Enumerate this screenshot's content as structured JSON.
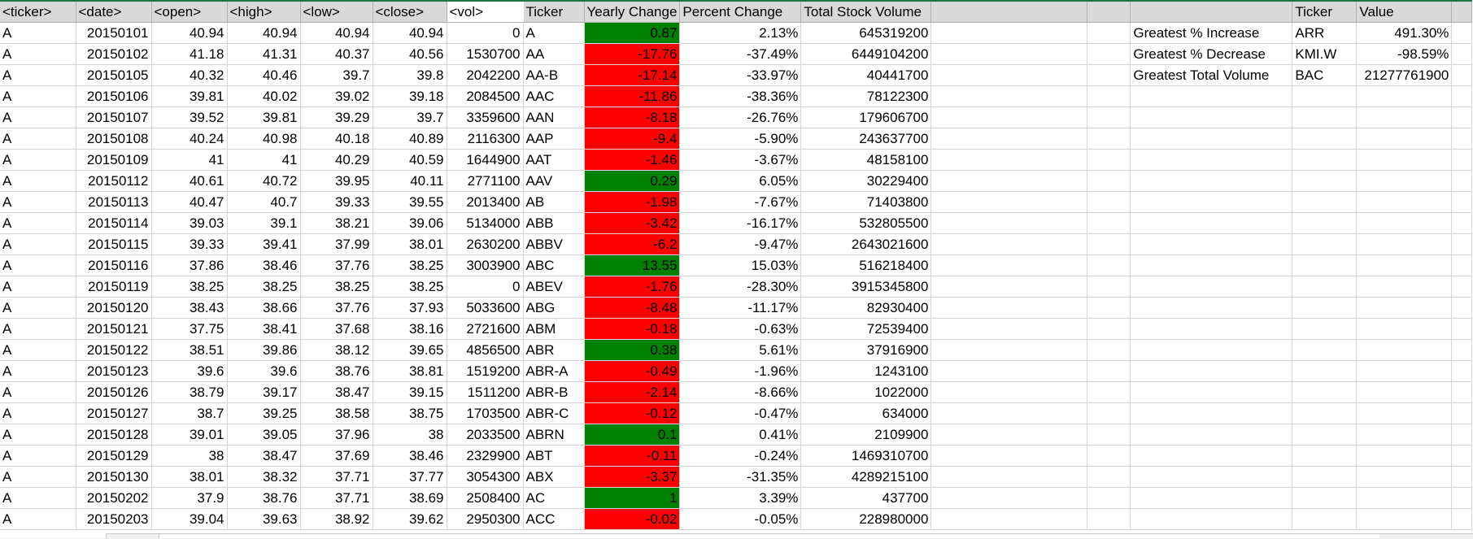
{
  "colors": {
    "positive_fill": "#008000",
    "negative_fill": "#ff0000",
    "header_fill": "#d9d9d9",
    "grid_line": "#d4d4d4",
    "selection_border": "#217346"
  },
  "headers": {
    "raw": [
      "<ticker>",
      "<date>",
      "<open>",
      "<high>",
      "<low>",
      "<close>",
      "<vol>"
    ],
    "summary": [
      "Ticker",
      "Yearly Change",
      "Percent Change",
      "Total Stock Volume"
    ],
    "greatest": [
      "",
      "Ticker",
      "Value"
    ]
  },
  "raw_rows": [
    [
      "A",
      "20150101",
      "40.94",
      "40.94",
      "40.94",
      "40.94",
      "0"
    ],
    [
      "A",
      "20150102",
      "41.18",
      "41.31",
      "40.37",
      "40.56",
      "1530700"
    ],
    [
      "A",
      "20150105",
      "40.32",
      "40.46",
      "39.7",
      "39.8",
      "2042200"
    ],
    [
      "A",
      "20150106",
      "39.81",
      "40.02",
      "39.02",
      "39.18",
      "2084500"
    ],
    [
      "A",
      "20150107",
      "39.52",
      "39.81",
      "39.29",
      "39.7",
      "3359600"
    ],
    [
      "A",
      "20150108",
      "40.24",
      "40.98",
      "40.18",
      "40.89",
      "2116300"
    ],
    [
      "A",
      "20150109",
      "41",
      "41",
      "40.29",
      "40.59",
      "1644900"
    ],
    [
      "A",
      "20150112",
      "40.61",
      "40.72",
      "39.95",
      "40.11",
      "2771100"
    ],
    [
      "A",
      "20150113",
      "40.47",
      "40.7",
      "39.33",
      "39.55",
      "2013400"
    ],
    [
      "A",
      "20150114",
      "39.03",
      "39.1",
      "38.21",
      "39.06",
      "5134000"
    ],
    [
      "A",
      "20150115",
      "39.33",
      "39.41",
      "37.99",
      "38.01",
      "2630200"
    ],
    [
      "A",
      "20150116",
      "37.86",
      "38.46",
      "37.76",
      "38.25",
      "3003900"
    ],
    [
      "A",
      "20150119",
      "38.25",
      "38.25",
      "38.25",
      "38.25",
      "0"
    ],
    [
      "A",
      "20150120",
      "38.43",
      "38.66",
      "37.76",
      "37.93",
      "5033600"
    ],
    [
      "A",
      "20150121",
      "37.75",
      "38.41",
      "37.68",
      "38.16",
      "2721600"
    ],
    [
      "A",
      "20150122",
      "38.51",
      "39.86",
      "38.12",
      "39.65",
      "4856500"
    ],
    [
      "A",
      "20150123",
      "39.6",
      "39.6",
      "38.76",
      "38.81",
      "1519200"
    ],
    [
      "A",
      "20150126",
      "38.79",
      "39.17",
      "38.47",
      "39.15",
      "1511200"
    ],
    [
      "A",
      "20150127",
      "38.7",
      "39.25",
      "38.58",
      "38.75",
      "1703500"
    ],
    [
      "A",
      "20150128",
      "39.01",
      "39.05",
      "37.96",
      "38",
      "2033500"
    ],
    [
      "A",
      "20150129",
      "38",
      "38.47",
      "37.69",
      "38.46",
      "2329900"
    ],
    [
      "A",
      "20150130",
      "38.01",
      "38.32",
      "37.71",
      "37.77",
      "3054300"
    ],
    [
      "A",
      "20150202",
      "37.9",
      "38.76",
      "37.71",
      "38.69",
      "2508400"
    ],
    [
      "A",
      "20150203",
      "39.04",
      "39.63",
      "38.92",
      "39.62",
      "2950300"
    ]
  ],
  "summary_rows": [
    {
      "ticker": "A",
      "change": "0.87",
      "pct": "2.13%",
      "volume": "645319200"
    },
    {
      "ticker": "AA",
      "change": "-17.76",
      "pct": "-37.49%",
      "volume": "6449104200"
    },
    {
      "ticker": "AA-B",
      "change": "-17.14",
      "pct": "-33.97%",
      "volume": "40441700"
    },
    {
      "ticker": "AAC",
      "change": "-11.86",
      "pct": "-38.36%",
      "volume": "78122300"
    },
    {
      "ticker": "AAN",
      "change": "-8.18",
      "pct": "-26.76%",
      "volume": "179606700"
    },
    {
      "ticker": "AAP",
      "change": "-9.4",
      "pct": "-5.90%",
      "volume": "243637700"
    },
    {
      "ticker": "AAT",
      "change": "-1.46",
      "pct": "-3.67%",
      "volume": "48158100"
    },
    {
      "ticker": "AAV",
      "change": "0.29",
      "pct": "6.05%",
      "volume": "30229400"
    },
    {
      "ticker": "AB",
      "change": "-1.98",
      "pct": "-7.67%",
      "volume": "71403800"
    },
    {
      "ticker": "ABB",
      "change": "-3.42",
      "pct": "-16.17%",
      "volume": "532805500"
    },
    {
      "ticker": "ABBV",
      "change": "-6.2",
      "pct": "-9.47%",
      "volume": "2643021600"
    },
    {
      "ticker": "ABC",
      "change": "13.55",
      "pct": "15.03%",
      "volume": "516218400"
    },
    {
      "ticker": "ABEV",
      "change": "-1.76",
      "pct": "-28.30%",
      "volume": "3915345800"
    },
    {
      "ticker": "ABG",
      "change": "-8.48",
      "pct": "-11.17%",
      "volume": "82930400"
    },
    {
      "ticker": "ABM",
      "change": "-0.18",
      "pct": "-0.63%",
      "volume": "72539400"
    },
    {
      "ticker": "ABR",
      "change": "0.38",
      "pct": "5.61%",
      "volume": "37916900"
    },
    {
      "ticker": "ABR-A",
      "change": "-0.49",
      "pct": "-1.96%",
      "volume": "1243100"
    },
    {
      "ticker": "ABR-B",
      "change": "-2.14",
      "pct": "-8.66%",
      "volume": "1022000"
    },
    {
      "ticker": "ABR-C",
      "change": "-0.12",
      "pct": "-0.47%",
      "volume": "634000"
    },
    {
      "ticker": "ABRN",
      "change": "0.1",
      "pct": "0.41%",
      "volume": "2109900"
    },
    {
      "ticker": "ABT",
      "change": "-0.11",
      "pct": "-0.24%",
      "volume": "1469310700"
    },
    {
      "ticker": "ABX",
      "change": "-3.37",
      "pct": "-31.35%",
      "volume": "4289215100"
    },
    {
      "ticker": "AC",
      "change": "1",
      "pct": "3.39%",
      "volume": "437700"
    },
    {
      "ticker": "ACC",
      "change": "-0.02",
      "pct": "-0.05%",
      "volume": "228980000"
    }
  ],
  "greatest": [
    {
      "label": "Greatest % Increase",
      "ticker": "ARR",
      "value": "491.30%"
    },
    {
      "label": "Greatest % Decrease",
      "ticker": "KMI.W",
      "value": "-98.59%"
    },
    {
      "label": "Greatest Total Volume",
      "ticker": "BAC",
      "value": "21277761900"
    }
  ]
}
